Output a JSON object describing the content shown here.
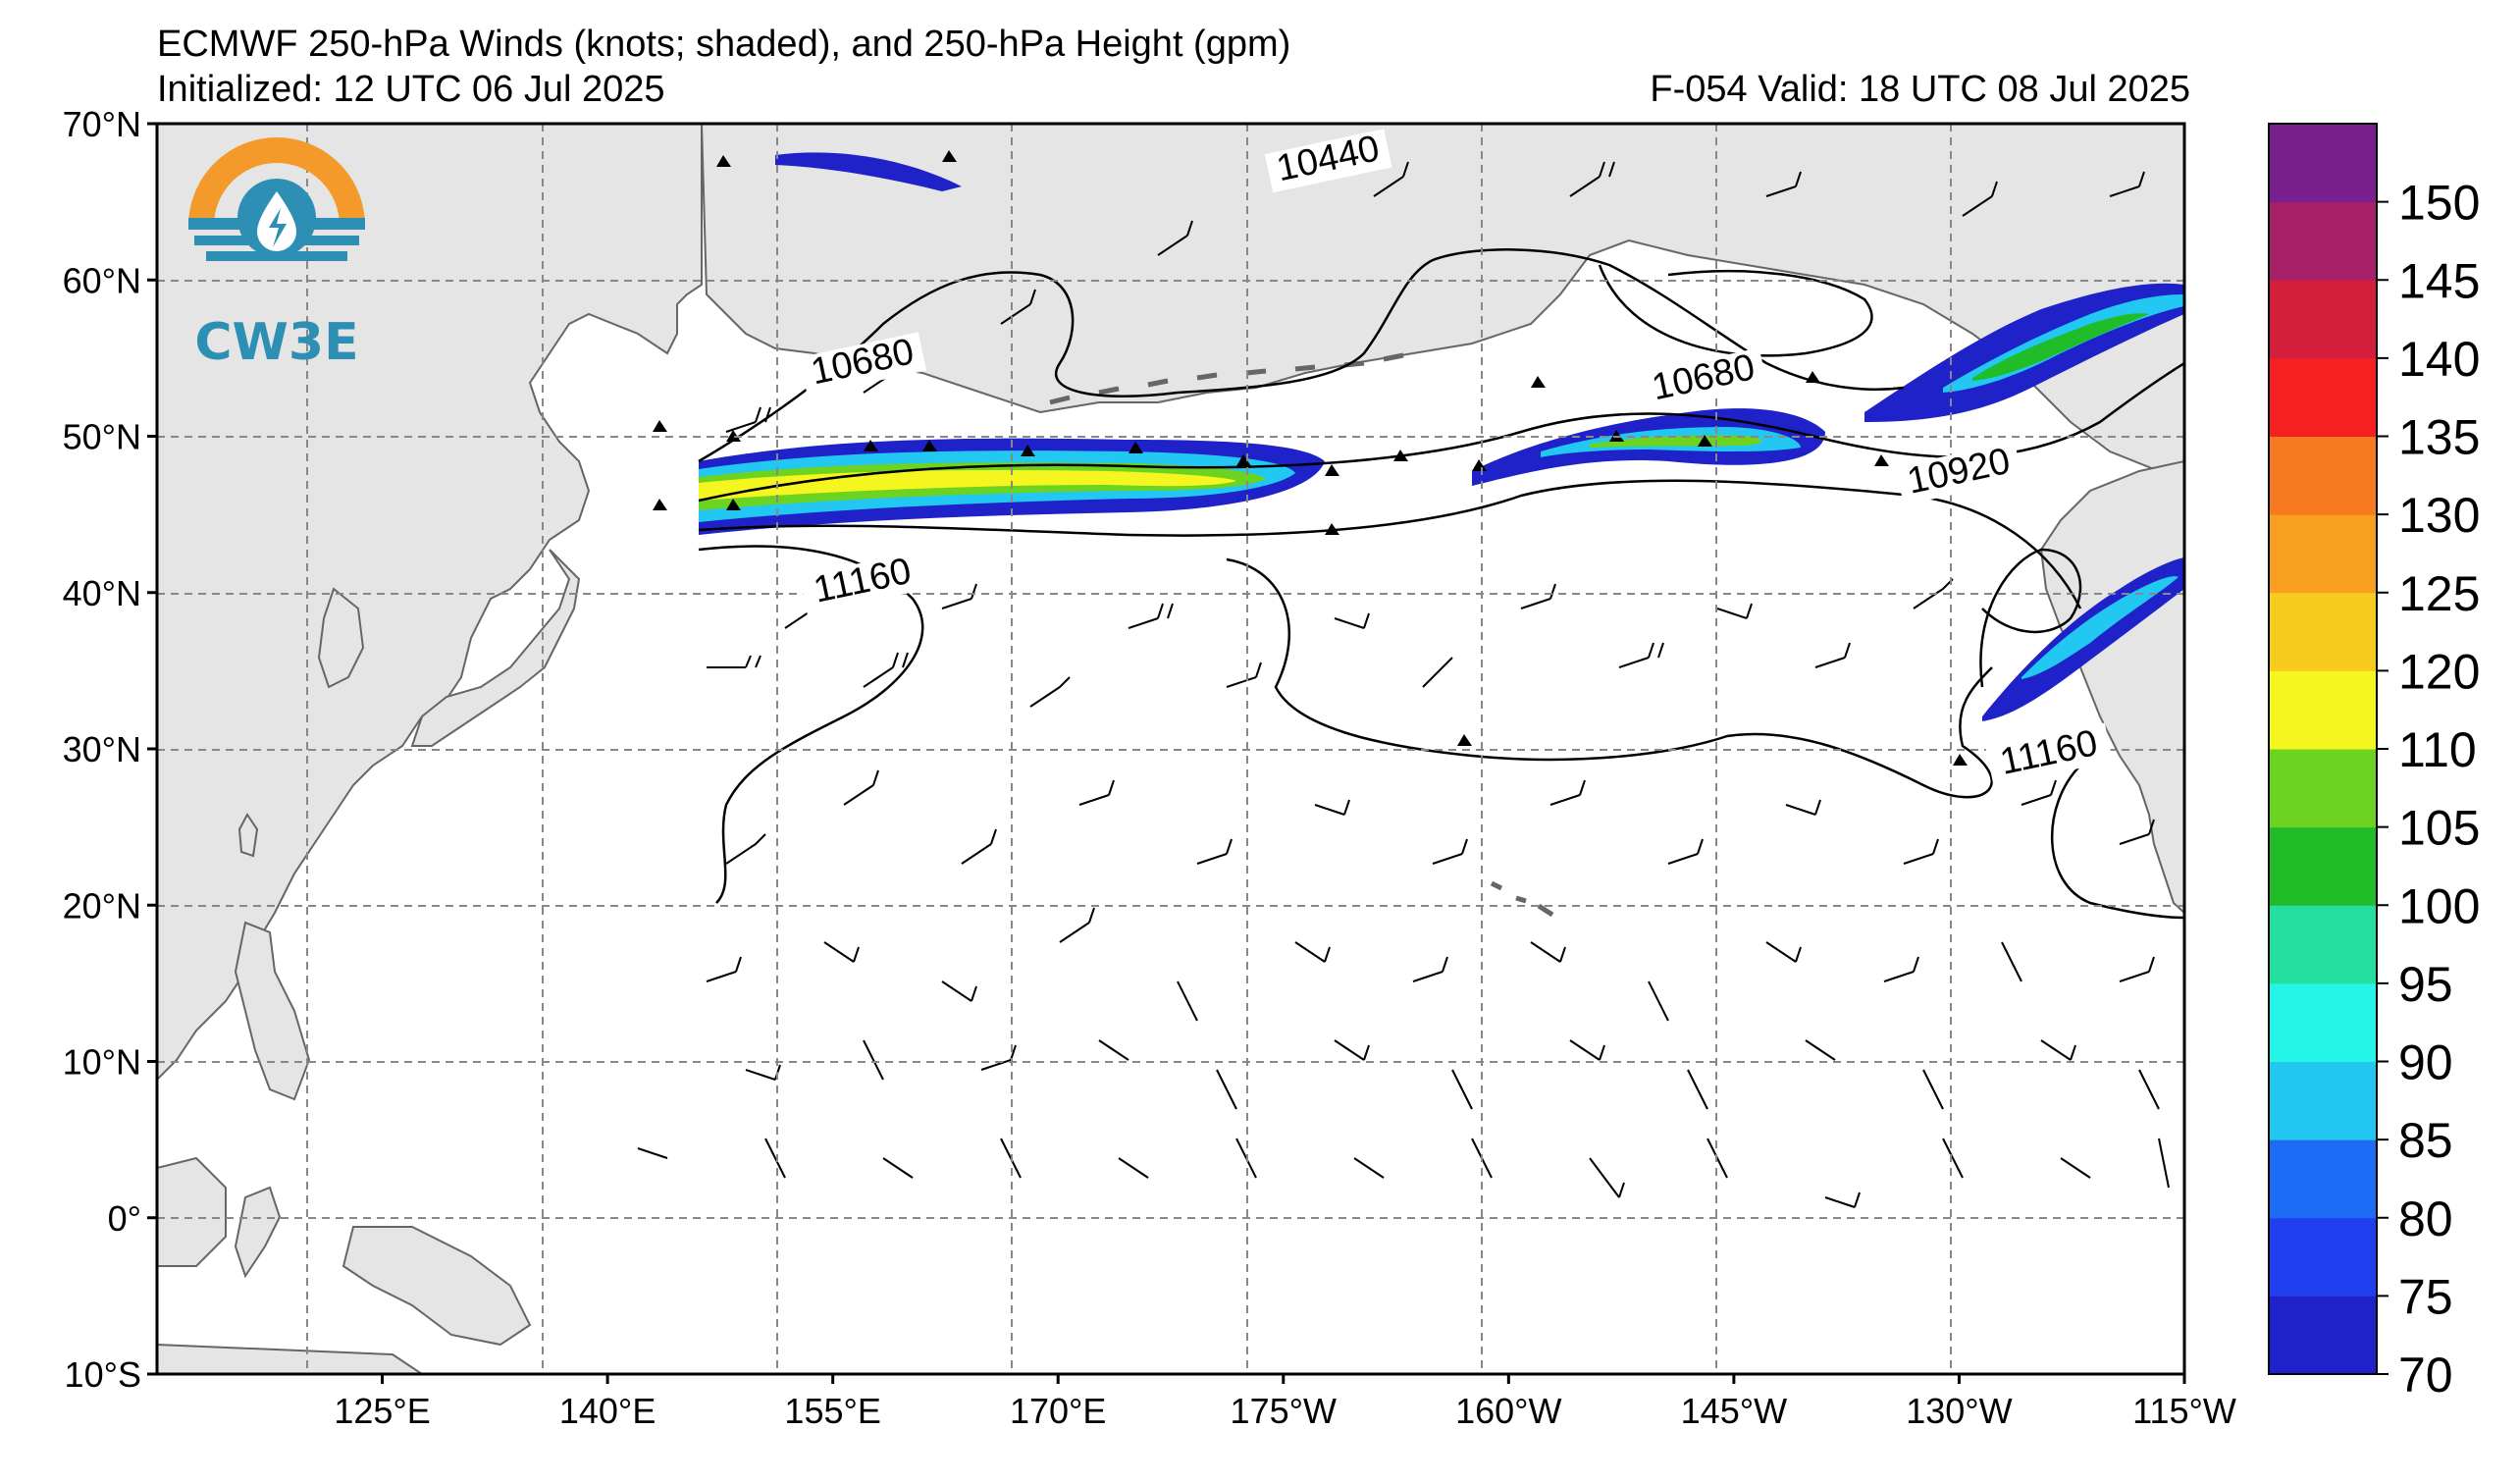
{
  "header": {
    "title": "ECMWF 250-hPa Winds (knots; shaded), and 250-hPa Height (gpm)",
    "initialized": "Initialized: 12 UTC 06 Jul 2025",
    "valid": "F-054  Valid: 18 UTC 08 Jul 2025"
  },
  "logo": {
    "text": "CW3E",
    "colors": {
      "sun": "#F39A2B",
      "water": "#2E8FB5"
    }
  },
  "axes": {
    "lat_labels": [
      "70°N",
      "60°N",
      "50°N",
      "40°N",
      "30°N",
      "20°N",
      "10°N",
      "0°",
      "10°S"
    ],
    "lon_labels": [
      "125°E",
      "140°E",
      "155°E",
      "170°E",
      "175°W",
      "160°W",
      "145°W",
      "130°W",
      "115°W"
    ],
    "lat_values": [
      70,
      60,
      50,
      40,
      30,
      20,
      10,
      0,
      -10
    ],
    "lon_values": [
      125,
      140,
      155,
      170,
      185,
      200,
      215,
      230,
      245
    ],
    "lon_range": [
      110,
      245
    ],
    "lat_range": [
      -10,
      70
    ]
  },
  "contour_labels": [
    {
      "text": "10440",
      "lon": 188,
      "lat": 67
    },
    {
      "text": "10680",
      "lon": 157,
      "lat": 54
    },
    {
      "text": "10680",
      "lon": 213,
      "lat": 53
    },
    {
      "text": "10920",
      "lon": 230,
      "lat": 47
    },
    {
      "text": "11160",
      "lon": 157,
      "lat": 40
    },
    {
      "text": "11160",
      "lon": 236,
      "lat": 29
    }
  ],
  "colorbar": {
    "tick_labels": [
      "70",
      "75",
      "80",
      "85",
      "90",
      "95",
      "100",
      "105",
      "110",
      "120",
      "125",
      "130",
      "135",
      "140",
      "145",
      "150"
    ],
    "colors": [
      "#1E22C8",
      "#2040F0",
      "#1E6CF5",
      "#22C7F2",
      "#24F5E8",
      "#24DFA0",
      "#20BD28",
      "#6CD421",
      "#F5F520",
      "#F7CC1F",
      "#F7A020",
      "#F77A20",
      "#F72020",
      "#D41F3C",
      "#A81F6A",
      "#7A208E"
    ]
  },
  "colors": {
    "land": "#E5E5E5",
    "coast": "#666666",
    "grid": "#888888",
    "contour": "#000000"
  }
}
